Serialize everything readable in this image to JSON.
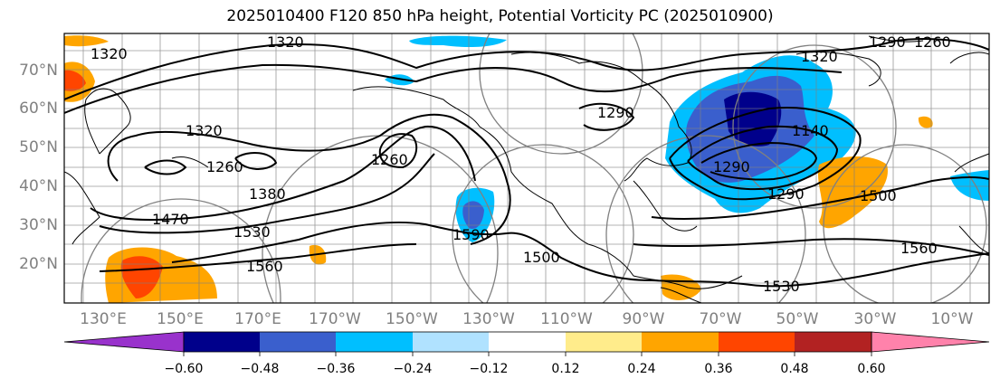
{
  "title": "2025010400 F120 850 hPa height, Potential Vorticity PC (2025010900)",
  "lat_labels": [
    "70°N",
    "60°N",
    "50°N",
    "40°N",
    "30°N",
    "20°N"
  ],
  "lon_labels": [
    "130°E",
    "150°E",
    "170°E",
    "170°W",
    "150°W",
    "130°W",
    "110°W",
    "90°W",
    "70°W",
    "50°W",
    "30°W",
    "10°W"
  ],
  "contour_labels": [
    "1320",
    "1320",
    "1320",
    "1320",
    "1290",
    "1260",
    "1290",
    "1260",
    "1260",
    "1380",
    "1470",
    "1530",
    "1560",
    "1590",
    "1500",
    "1530",
    "1560",
    "1500",
    "1290",
    "1290",
    "1140"
  ],
  "colorbar": {
    "ticks": [
      "−0.60",
      "−0.48",
      "−0.36",
      "−0.24",
      "−0.12",
      "0.12",
      "0.24",
      "0.36",
      "0.48",
      "0.60"
    ],
    "colors": [
      "#9932cc",
      "#00008b",
      "#3a5fcd",
      "#00bfff",
      "#b0e2ff",
      "#ffffff",
      "#ffec8b",
      "#ffa500",
      "#ff4500",
      "#b22222",
      "#ff82ab"
    ]
  }
}
